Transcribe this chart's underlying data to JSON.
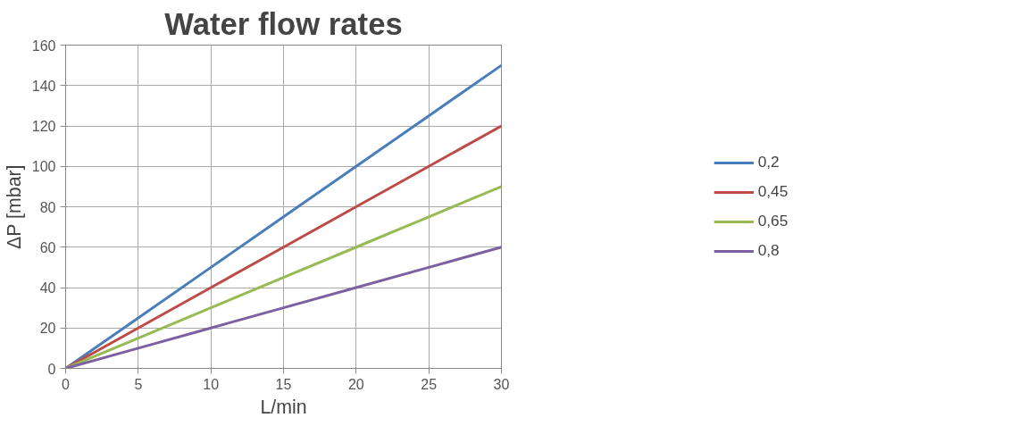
{
  "chart_data": {
    "type": "line",
    "title": "Water flow rates",
    "xlabel": "L/min",
    "ylabel": "ΔP [mbar]",
    "x": [
      0,
      5,
      10,
      15,
      20,
      25,
      30
    ],
    "series": [
      {
        "name": "0,2",
        "color": "#4a7ebb",
        "values": [
          0,
          25,
          50,
          75,
          100,
          125,
          150
        ]
      },
      {
        "name": "0,45",
        "color": "#be4b48",
        "values": [
          0,
          20,
          40,
          60,
          80,
          100,
          120
        ]
      },
      {
        "name": "0,65",
        "color": "#98b954",
        "values": [
          0,
          15,
          30,
          45,
          60,
          75,
          90
        ]
      },
      {
        "name": "0,8",
        "color": "#7d60a0",
        "values": [
          0,
          10,
          20,
          30,
          40,
          50,
          60
        ]
      }
    ],
    "xlim": [
      0,
      30
    ],
    "ylim": [
      0,
      160
    ],
    "xticks": [
      0,
      5,
      10,
      15,
      20,
      25,
      30
    ],
    "yticks": [
      0,
      20,
      40,
      60,
      80,
      100,
      120,
      140,
      160
    ],
    "grid": true,
    "legend": "right"
  }
}
